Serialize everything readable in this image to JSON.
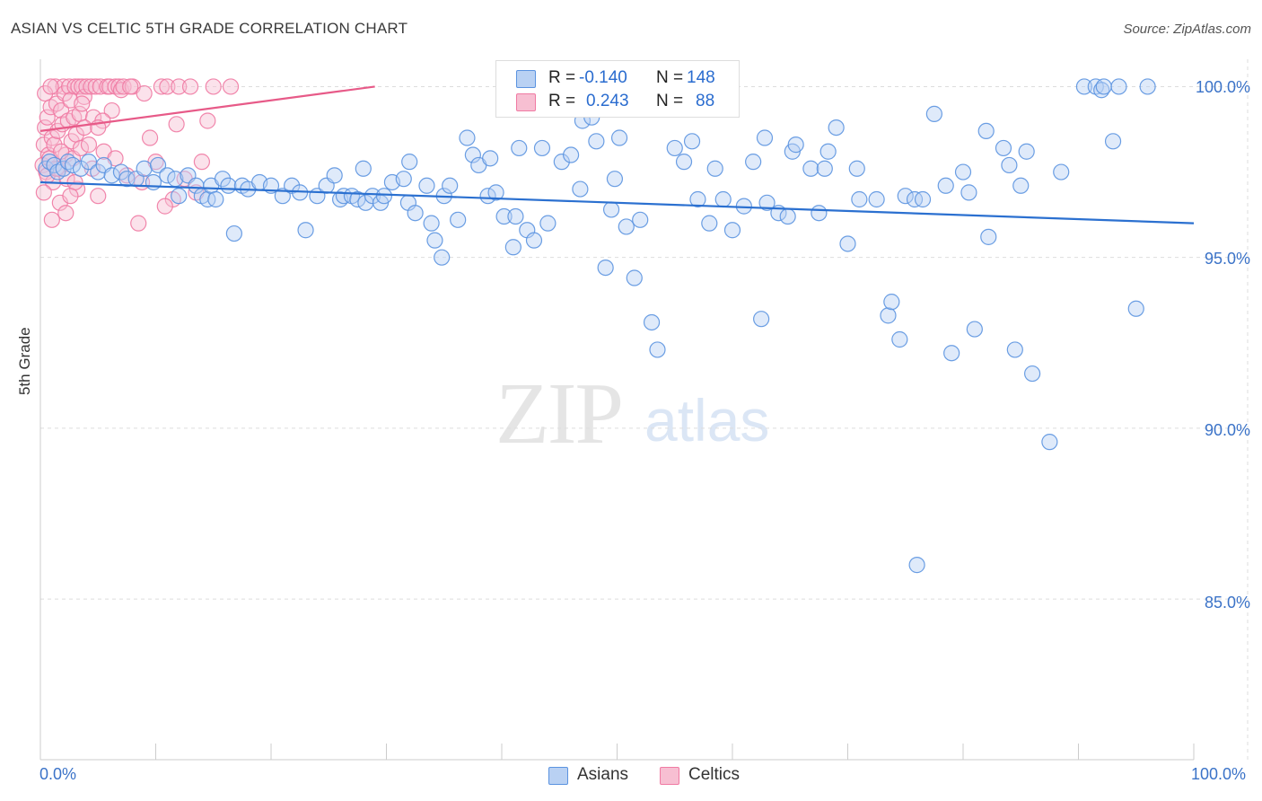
{
  "title": "ASIAN VS CELTIC 5TH GRADE CORRELATION CHART",
  "source": "Source: ZipAtlas.com",
  "watermark": {
    "zip": "ZIP",
    "atlas": "atlas"
  },
  "colors": {
    "asian": "#5b93e0",
    "asian_fill": "#b9d1f3",
    "asian_line": "#2b70d0",
    "celtic": "#f07aa3",
    "celtic_fill": "#f7bfd2",
    "celtic_line": "#e75a88",
    "axis_text": "#3b73c8",
    "grid": "#dddddd"
  },
  "stats": {
    "asian": {
      "r_label": "R =",
      "r_value": "-0.140",
      "n_label": "N =",
      "n_value": "148"
    },
    "celtic": {
      "r_label": "R =",
      "r_value": "0.243",
      "n_label": "N =",
      "n_value": "88"
    }
  },
  "legend": {
    "asian": "Asians",
    "celtic": "Celtics"
  },
  "axis": {
    "ylabel": "5th Grade",
    "x_min_label": "0.0%",
    "x_max_label": "100.0%",
    "y_ticks": [
      "100.0%",
      "95.0%",
      "90.0%",
      "85.0%"
    ]
  },
  "chart_data": {
    "type": "scatter",
    "title": "ASIAN VS CELTIC 5TH GRADE CORRELATION CHART",
    "xlabel": "",
    "ylabel": "5th Grade",
    "xlim": [
      0,
      100
    ],
    "ylim": [
      80.3,
      100.8
    ],
    "y_ticks": [
      100,
      95,
      90,
      85
    ],
    "grid": true,
    "legend_position": "bottom",
    "series": [
      {
        "name": "Asians",
        "trend": {
          "x": [
            0,
            100
          ],
          "y": [
            97.2,
            96.0
          ]
        },
        "points": [
          [
            0.5,
            97.6
          ],
          [
            0.8,
            97.8
          ],
          [
            1.2,
            97.7
          ],
          [
            1.5,
            97.5
          ],
          [
            2.0,
            97.6
          ],
          [
            2.4,
            97.8
          ],
          [
            2.8,
            97.7
          ],
          [
            3.5,
            97.6
          ],
          [
            4.2,
            97.8
          ],
          [
            5.0,
            97.5
          ],
          [
            5.5,
            97.7
          ],
          [
            6.2,
            97.4
          ],
          [
            7.0,
            97.5
          ],
          [
            7.5,
            97.3
          ],
          [
            8.3,
            97.3
          ],
          [
            9.0,
            97.6
          ],
          [
            9.8,
            97.2
          ],
          [
            10.2,
            97.7
          ],
          [
            11.0,
            97.4
          ],
          [
            11.7,
            97.3
          ],
          [
            12.0,
            96.8
          ],
          [
            12.8,
            97.4
          ],
          [
            13.5,
            97.1
          ],
          [
            14.0,
            96.8
          ],
          [
            14.5,
            96.7
          ],
          [
            14.8,
            97.1
          ],
          [
            15.2,
            96.7
          ],
          [
            15.8,
            97.3
          ],
          [
            16.3,
            97.1
          ],
          [
            16.8,
            95.7
          ],
          [
            17.5,
            97.1
          ],
          [
            18.0,
            97.0
          ],
          [
            19.0,
            97.2
          ],
          [
            20.0,
            97.1
          ],
          [
            21.0,
            96.8
          ],
          [
            21.8,
            97.1
          ],
          [
            22.5,
            96.9
          ],
          [
            23.0,
            95.8
          ],
          [
            24.0,
            96.8
          ],
          [
            24.8,
            97.1
          ],
          [
            25.5,
            97.4
          ],
          [
            26.0,
            96.7
          ],
          [
            26.3,
            96.8
          ],
          [
            27.0,
            96.8
          ],
          [
            27.5,
            96.7
          ],
          [
            28.0,
            97.6
          ],
          [
            28.2,
            96.6
          ],
          [
            28.8,
            96.8
          ],
          [
            29.5,
            96.6
          ],
          [
            29.8,
            96.8
          ],
          [
            30.5,
            97.2
          ],
          [
            31.5,
            97.3
          ],
          [
            31.9,
            96.6
          ],
          [
            32.0,
            97.8
          ],
          [
            32.5,
            96.3
          ],
          [
            33.5,
            97.1
          ],
          [
            33.9,
            96.0
          ],
          [
            34.2,
            95.5
          ],
          [
            34.8,
            95.0
          ],
          [
            35.0,
            96.8
          ],
          [
            35.5,
            97.1
          ],
          [
            36.2,
            96.1
          ],
          [
            37.0,
            98.5
          ],
          [
            37.5,
            98.0
          ],
          [
            38.0,
            97.7
          ],
          [
            38.8,
            96.8
          ],
          [
            39.0,
            97.9
          ],
          [
            39.5,
            96.9
          ],
          [
            40.2,
            96.2
          ],
          [
            41.0,
            95.3
          ],
          [
            41.2,
            96.2
          ],
          [
            41.5,
            98.2
          ],
          [
            42.2,
            95.8
          ],
          [
            42.8,
            95.5
          ],
          [
            43.5,
            98.2
          ],
          [
            44.0,
            96.0
          ],
          [
            45.2,
            97.8
          ],
          [
            46.0,
            98.0
          ],
          [
            46.8,
            97.0
          ],
          [
            47.0,
            99.0
          ],
          [
            47.8,
            99.1
          ],
          [
            48.2,
            98.4
          ],
          [
            49.0,
            94.7
          ],
          [
            49.5,
            96.4
          ],
          [
            49.8,
            97.3
          ],
          [
            50.2,
            98.5
          ],
          [
            50.8,
            95.9
          ],
          [
            51.5,
            94.4
          ],
          [
            52.0,
            96.1
          ],
          [
            53.0,
            93.1
          ],
          [
            53.5,
            92.3
          ],
          [
            55.0,
            98.2
          ],
          [
            55.8,
            97.8
          ],
          [
            56.5,
            98.4
          ],
          [
            57.0,
            96.7
          ],
          [
            58.0,
            96.0
          ],
          [
            58.5,
            97.6
          ],
          [
            59.2,
            96.7
          ],
          [
            60.0,
            95.8
          ],
          [
            61.0,
            96.5
          ],
          [
            61.8,
            97.8
          ],
          [
            62.8,
            98.5
          ],
          [
            62.5,
            93.2
          ],
          [
            63.0,
            96.6
          ],
          [
            64.0,
            96.3
          ],
          [
            64.8,
            96.2
          ],
          [
            65.2,
            98.1
          ],
          [
            65.5,
            98.3
          ],
          [
            66.8,
            97.6
          ],
          [
            67.5,
            96.3
          ],
          [
            68.3,
            98.1
          ],
          [
            68.0,
            97.6
          ],
          [
            69.0,
            98.8
          ],
          [
            70.0,
            95.4
          ],
          [
            70.8,
            97.6
          ],
          [
            71.0,
            96.7
          ],
          [
            72.5,
            96.7
          ],
          [
            73.5,
            93.3
          ],
          [
            73.8,
            93.7
          ],
          [
            74.5,
            92.6
          ],
          [
            75.0,
            96.8
          ],
          [
            75.8,
            96.7
          ],
          [
            76.5,
            96.7
          ],
          [
            77.5,
            99.2
          ],
          [
            78.5,
            97.1
          ],
          [
            79.0,
            92.2
          ],
          [
            80.0,
            97.5
          ],
          [
            80.5,
            96.9
          ],
          [
            81.0,
            92.9
          ],
          [
            82.0,
            98.7
          ],
          [
            82.2,
            95.6
          ],
          [
            83.5,
            98.2
          ],
          [
            84.0,
            97.7
          ],
          [
            84.5,
            92.3
          ],
          [
            85.0,
            97.1
          ],
          [
            85.5,
            98.1
          ],
          [
            86.0,
            91.6
          ],
          [
            87.5,
            89.6
          ],
          [
            88.5,
            97.5
          ],
          [
            90.5,
            100.0
          ],
          [
            91.5,
            100.0
          ],
          [
            92.0,
            99.9
          ],
          [
            92.2,
            100.0
          ],
          [
            93.0,
            98.4
          ],
          [
            93.5,
            100.0
          ],
          [
            95.0,
            93.5
          ],
          [
            96.0,
            100.0
          ],
          [
            76.0,
            86.0
          ]
        ]
      },
      {
        "name": "Celtics",
        "trend": {
          "x": [
            0,
            29
          ],
          "y": [
            98.7,
            100.0
          ]
        },
        "points": [
          [
            0.2,
            97.7
          ],
          [
            0.3,
            98.3
          ],
          [
            0.4,
            98.8
          ],
          [
            0.5,
            97.5
          ],
          [
            0.6,
            99.1
          ],
          [
            0.7,
            98.0
          ],
          [
            0.8,
            97.9
          ],
          [
            0.9,
            99.4
          ],
          [
            1.0,
            98.5
          ],
          [
            1.1,
            97.2
          ],
          [
            1.2,
            98.3
          ],
          [
            1.3,
            100.0
          ],
          [
            1.4,
            99.5
          ],
          [
            1.5,
            98.7
          ],
          [
            1.6,
            97.6
          ],
          [
            1.7,
            96.6
          ],
          [
            1.8,
            99.3
          ],
          [
            1.9,
            98.9
          ],
          [
            2.0,
            100.0
          ],
          [
            2.1,
            99.8
          ],
          [
            2.2,
            98.0
          ],
          [
            2.3,
            97.3
          ],
          [
            2.4,
            99.0
          ],
          [
            2.5,
            100.0
          ],
          [
            2.6,
            99.6
          ],
          [
            2.7,
            98.4
          ],
          [
            2.8,
            97.9
          ],
          [
            2.9,
            99.1
          ],
          [
            3.0,
            100.0
          ],
          [
            3.1,
            98.6
          ],
          [
            3.2,
            97.0
          ],
          [
            3.3,
            100.0
          ],
          [
            3.4,
            99.2
          ],
          [
            3.5,
            98.2
          ],
          [
            3.6,
            100.0
          ],
          [
            3.8,
            99.7
          ],
          [
            4.0,
            100.0
          ],
          [
            4.2,
            98.3
          ],
          [
            4.4,
            100.0
          ],
          [
            4.6,
            99.1
          ],
          [
            4.8,
            100.0
          ],
          [
            5.0,
            96.8
          ],
          [
            5.2,
            100.0
          ],
          [
            5.5,
            98.1
          ],
          [
            5.8,
            100.0
          ],
          [
            6.0,
            100.0
          ],
          [
            6.2,
            99.3
          ],
          [
            6.5,
            100.0
          ],
          [
            6.8,
            100.0
          ],
          [
            7.0,
            99.9
          ],
          [
            7.2,
            100.0
          ],
          [
            7.5,
            97.4
          ],
          [
            8.0,
            100.0
          ],
          [
            8.5,
            96.0
          ],
          [
            9.0,
            99.8
          ],
          [
            10.0,
            97.8
          ],
          [
            10.5,
            100.0
          ],
          [
            11.0,
            100.0
          ],
          [
            11.5,
            96.7
          ],
          [
            12.0,
            100.0
          ],
          [
            13.0,
            100.0
          ],
          [
            14.0,
            97.8
          ],
          [
            15.0,
            100.0
          ],
          [
            16.5,
            100.0
          ],
          [
            0.3,
            96.9
          ],
          [
            0.6,
            97.4
          ],
          [
            1.0,
            96.1
          ],
          [
            1.4,
            97.6
          ],
          [
            1.8,
            98.1
          ],
          [
            2.2,
            96.3
          ],
          [
            3.0,
            97.2
          ],
          [
            3.8,
            98.8
          ],
          [
            4.5,
            97.6
          ],
          [
            5.4,
            99.0
          ],
          [
            6.5,
            97.9
          ],
          [
            7.8,
            100.0
          ],
          [
            9.5,
            98.5
          ],
          [
            10.8,
            96.5
          ],
          [
            12.5,
            97.3
          ],
          [
            14.5,
            99.0
          ],
          [
            0.4,
            99.8
          ],
          [
            0.9,
            100.0
          ],
          [
            2.6,
            96.8
          ],
          [
            3.6,
            99.5
          ],
          [
            5.0,
            98.8
          ],
          [
            8.8,
            97.2
          ],
          [
            11.8,
            98.9
          ],
          [
            13.5,
            96.9
          ]
        ]
      }
    ]
  }
}
